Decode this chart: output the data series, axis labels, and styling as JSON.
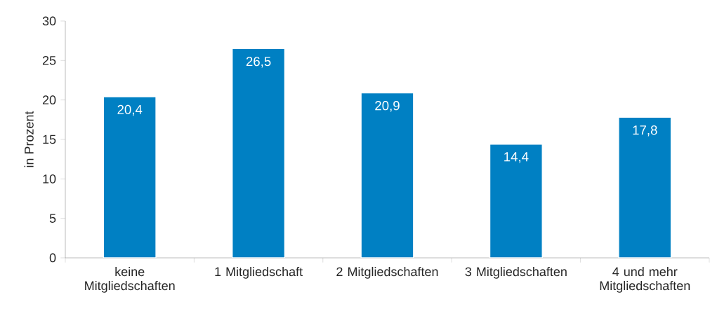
{
  "chart_data": {
    "type": "bar",
    "ylabel": "in Prozent",
    "categories": [
      "keine Mitgliedschaften",
      "1 Mitgliedschaft",
      "2 Mitgliedschaften",
      "3 Mitgliedschaften",
      "4 und mehr Mitgliedschaften"
    ],
    "values": [
      20.4,
      26.5,
      20.9,
      14.4,
      17.8
    ],
    "value_labels": [
      "20,4",
      "26,5",
      "20,9",
      "14,4",
      "17,8"
    ],
    "color": "#0080c3",
    "ylim": [
      0,
      30
    ],
    "yticks": [
      0,
      5,
      10,
      15,
      20,
      25,
      30
    ],
    "grid": false
  }
}
